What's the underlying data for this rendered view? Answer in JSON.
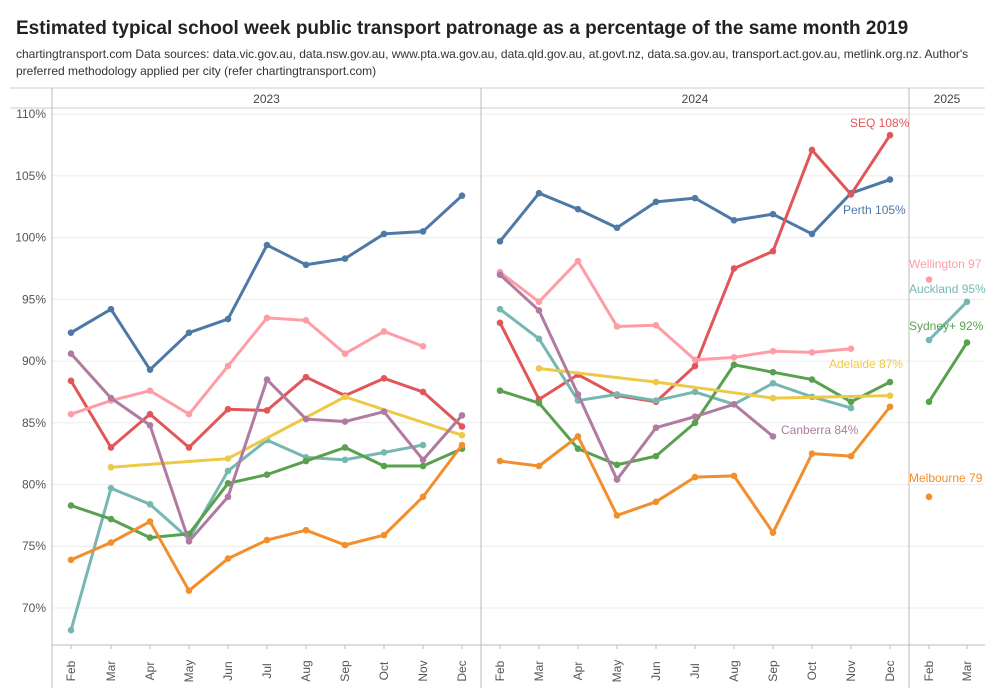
{
  "title": "Estimated typical school week public transport patronage as a percentage of the same month 2019",
  "subtitle": "chartingtransport.com  Data sources: data.vic.gov.au, data.nsw.gov.au, www.pta.wa.gov.au, data.qld.gov.au, at.govt.nz, data.sa.gov.au, transport.act.gov.au, metlink.org.nz. Author's preferred methodology applied per city (refer chartingtransport.com)",
  "chart_data": {
    "type": "line",
    "ylim": [
      67,
      110.5
    ],
    "y_ticks": [
      70,
      75,
      80,
      85,
      90,
      95,
      100,
      105,
      110
    ],
    "y_tick_labels": [
      "70%",
      "75%",
      "80%",
      "85%",
      "90%",
      "95%",
      "100%",
      "105%",
      "110%"
    ],
    "grid": true,
    "panels": [
      {
        "label": "2023",
        "months": [
          "Feb",
          "Mar",
          "Apr",
          "May",
          "Jun",
          "Jul",
          "Aug",
          "Sep",
          "Oct",
          "Nov",
          "Dec"
        ]
      },
      {
        "label": "2024",
        "months": [
          "Feb",
          "Mar",
          "Apr",
          "May",
          "Jun",
          "Jul",
          "Aug",
          "Sep",
          "Oct",
          "Nov",
          "Dec"
        ]
      },
      {
        "label": "2025",
        "months": [
          "Feb",
          "Mar"
        ]
      }
    ],
    "series": [
      {
        "name": "Perth",
        "label": "Perth 105%",
        "color": "#4e79a7",
        "values": [
          [
            92.3,
            94.2,
            89.3,
            92.3,
            93.4,
            99.4,
            97.8,
            98.3,
            100.3,
            100.5,
            103.4
          ],
          [
            99.7,
            103.6,
            102.3,
            100.8,
            102.9,
            103.2,
            101.4,
            101.9,
            100.3,
            103.6,
            104.7
          ],
          []
        ]
      },
      {
        "name": "SEQ",
        "label": "SEQ 108%",
        "color": "#e15759",
        "values": [
          [
            88.4,
            83.0,
            85.7,
            83.0,
            86.1,
            86.0,
            88.7,
            87.2,
            88.6,
            87.5,
            84.7
          ],
          [
            93.1,
            86.9,
            88.9,
            87.2,
            86.7,
            89.6,
            97.5,
            98.9,
            107.1,
            103.5,
            108.3
          ],
          []
        ]
      },
      {
        "name": "Wellington",
        "label": "Wellington 97",
        "color": "#ff9da7",
        "values": [
          [
            85.7,
            86.8,
            87.6,
            85.7,
            89.6,
            93.5,
            93.3,
            90.6,
            92.4,
            91.2,
            null
          ],
          [
            97.2,
            94.8,
            98.1,
            92.8,
            92.9,
            90.1,
            90.3,
            90.8,
            90.7,
            91.0,
            null
          ],
          [
            96.6
          ]
        ]
      },
      {
        "name": "Auckland",
        "label": "Auckland 95%",
        "color": "#76b7b2",
        "values": [
          [
            68.2,
            79.7,
            78.4,
            75.6,
            81.1,
            83.6,
            82.2,
            82.0,
            82.6,
            83.2,
            null
          ],
          [
            94.2,
            91.8,
            86.8,
            87.3,
            86.8,
            87.5,
            86.5,
            88.2,
            87.1,
            86.2,
            null
          ],
          [
            91.7,
            94.8
          ]
        ]
      },
      {
        "name": "Sydney+",
        "label": "Sydney+ 92%",
        "color": "#59a14f",
        "values": [
          [
            78.3,
            77.2,
            75.7,
            76.0,
            80.1,
            80.8,
            81.9,
            83.0,
            81.5,
            81.5,
            82.9
          ],
          [
            87.6,
            86.6,
            82.9,
            81.6,
            82.3,
            85.0,
            89.7,
            89.1,
            88.5,
            86.7,
            88.3
          ],
          [
            86.7,
            91.5
          ]
        ]
      },
      {
        "name": "Adelaide",
        "label": "Adelaide 87%",
        "color": "#edc948",
        "values": [
          [
            null,
            81.4,
            null,
            null,
            82.1,
            null,
            null,
            87.1,
            null,
            null,
            84.0
          ],
          [
            null,
            89.4,
            null,
            null,
            88.3,
            null,
            null,
            87.0,
            null,
            null,
            87.2
          ],
          []
        ]
      },
      {
        "name": "Canberra",
        "label": "Canberra 84%",
        "color": "#b07aa1",
        "values": [
          [
            90.6,
            87.0,
            84.8,
            75.4,
            79.0,
            88.5,
            85.3,
            85.1,
            85.9,
            82.0,
            85.6
          ],
          [
            97.0,
            94.1,
            87.3,
            80.4,
            84.6,
            85.5,
            86.5,
            83.9,
            null,
            null,
            null
          ],
          []
        ]
      },
      {
        "name": "Melbourne",
        "label": "Melbourne 79",
        "color": "#f28e2b",
        "values": [
          [
            73.9,
            75.3,
            77.0,
            71.4,
            74.0,
            75.5,
            76.3,
            75.1,
            75.9,
            79.0,
            83.2
          ],
          [
            81.9,
            81.5,
            83.9,
            77.5,
            78.6,
            80.6,
            80.7,
            76.1,
            82.5,
            82.3,
            86.3
          ],
          [
            79.0
          ]
        ]
      }
    ]
  }
}
